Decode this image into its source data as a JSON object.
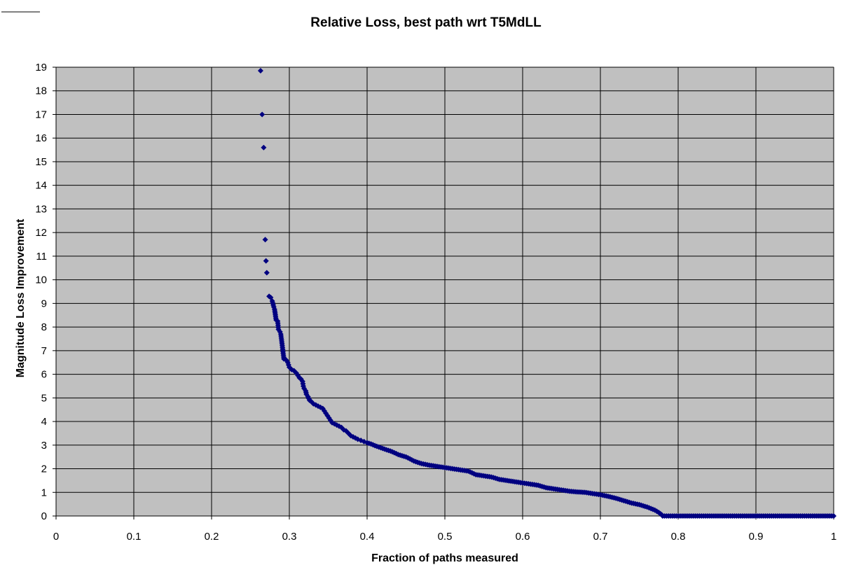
{
  "chart_data": {
    "type": "scatter",
    "title": "Relative Loss, best path wrt T5MdLL",
    "xlabel": "Fraction of paths measured",
    "ylabel": "Magnitude Loss Improvement",
    "xlim": [
      0,
      1
    ],
    "ylim": [
      0,
      19
    ],
    "x_ticks": [
      "0",
      "0.1",
      "0.2",
      "0.3",
      "0.4",
      "0.5",
      "0.6",
      "0.7",
      "0.8",
      "0.9",
      "1"
    ],
    "y_ticks": [
      "0",
      "1",
      "2",
      "3",
      "4",
      "5",
      "6",
      "7",
      "8",
      "9",
      "10",
      "11",
      "12",
      "13",
      "14",
      "15",
      "16",
      "17",
      "18",
      "19"
    ],
    "grid": true,
    "legend": "none",
    "colors": {
      "marker": "#000080",
      "plot_area": "#C0C0C0",
      "grid": "#000000"
    },
    "series": [
      {
        "marker": "diamond",
        "points": [
          [
            0.263,
            18.85
          ],
          [
            0.265,
            17.0
          ],
          [
            0.267,
            15.6
          ],
          [
            0.269,
            11.7
          ],
          [
            0.27,
            10.8
          ],
          [
            0.271,
            10.3
          ],
          [
            0.274,
            9.3
          ],
          [
            0.276,
            9.25
          ],
          [
            0.278,
            9.1
          ],
          [
            0.28,
            8.85
          ],
          [
            0.281,
            8.75
          ],
          [
            0.283,
            8.3
          ],
          [
            0.285,
            8.25
          ],
          [
            0.286,
            7.9
          ],
          [
            0.288,
            7.8
          ],
          [
            0.289,
            7.7
          ],
          [
            0.29,
            7.45
          ],
          [
            0.293,
            6.65
          ],
          [
            0.296,
            6.6
          ],
          [
            0.298,
            6.5
          ],
          [
            0.3,
            6.3
          ],
          [
            0.303,
            6.2
          ],
          [
            0.306,
            6.15
          ],
          [
            0.309,
            6.05
          ],
          [
            0.311,
            5.95
          ],
          [
            0.313,
            5.85
          ],
          [
            0.315,
            5.8
          ],
          [
            0.317,
            5.7
          ],
          [
            0.318,
            5.5
          ],
          [
            0.319,
            5.4
          ],
          [
            0.321,
            5.3
          ],
          [
            0.322,
            5.15
          ],
          [
            0.324,
            5.05
          ],
          [
            0.326,
            4.9
          ],
          [
            0.328,
            4.85
          ],
          [
            0.331,
            4.75
          ],
          [
            0.334,
            4.7
          ],
          [
            0.337,
            4.65
          ],
          [
            0.34,
            4.6
          ],
          [
            0.343,
            4.55
          ],
          [
            0.345,
            4.45
          ],
          [
            0.347,
            4.35
          ],
          [
            0.349,
            4.25
          ],
          [
            0.351,
            4.15
          ],
          [
            0.353,
            4.05
          ],
          [
            0.355,
            3.95
          ],
          [
            0.358,
            3.9
          ],
          [
            0.361,
            3.85
          ],
          [
            0.364,
            3.8
          ],
          [
            0.367,
            3.75
          ],
          [
            0.37,
            3.65
          ],
          [
            0.373,
            3.6
          ],
          [
            0.376,
            3.5
          ],
          [
            0.379,
            3.4
          ],
          [
            0.382,
            3.35
          ],
          [
            0.385,
            3.3
          ],
          [
            0.388,
            3.25
          ],
          [
            0.392,
            3.2
          ],
          [
            0.396,
            3.15
          ],
          [
            0.4,
            3.1
          ],
          [
            0.405,
            3.05
          ],
          [
            0.41,
            2.98
          ],
          [
            0.415,
            2.92
          ],
          [
            0.42,
            2.86
          ],
          [
            0.425,
            2.8
          ],
          [
            0.43,
            2.75
          ],
          [
            0.435,
            2.68
          ],
          [
            0.44,
            2.6
          ],
          [
            0.445,
            2.55
          ],
          [
            0.45,
            2.5
          ],
          [
            0.455,
            2.42
          ],
          [
            0.46,
            2.33
          ],
          [
            0.465,
            2.27
          ],
          [
            0.47,
            2.22
          ],
          [
            0.48,
            2.15
          ],
          [
            0.49,
            2.1
          ],
          [
            0.5,
            2.05
          ],
          [
            0.51,
            2.0
          ],
          [
            0.52,
            1.95
          ],
          [
            0.53,
            1.9
          ],
          [
            0.54,
            1.75
          ],
          [
            0.55,
            1.7
          ],
          [
            0.56,
            1.65
          ],
          [
            0.57,
            1.55
          ],
          [
            0.58,
            1.5
          ],
          [
            0.59,
            1.45
          ],
          [
            0.6,
            1.4
          ],
          [
            0.61,
            1.35
          ],
          [
            0.62,
            1.3
          ],
          [
            0.63,
            1.2
          ],
          [
            0.64,
            1.15
          ],
          [
            0.65,
            1.1
          ],
          [
            0.66,
            1.05
          ],
          [
            0.67,
            1.02
          ],
          [
            0.68,
            1.0
          ],
          [
            0.69,
            0.95
          ],
          [
            0.7,
            0.9
          ],
          [
            0.71,
            0.83
          ],
          [
            0.72,
            0.75
          ],
          [
            0.73,
            0.65
          ],
          [
            0.74,
            0.55
          ],
          [
            0.75,
            0.48
          ],
          [
            0.76,
            0.38
          ],
          [
            0.77,
            0.25
          ],
          [
            0.775,
            0.15
          ],
          [
            0.779,
            0.05
          ],
          [
            0.78,
            0.0
          ],
          [
            0.8,
            0.0
          ],
          [
            0.82,
            0.0
          ],
          [
            0.84,
            0.0
          ],
          [
            0.86,
            0.0
          ],
          [
            0.88,
            0.0
          ],
          [
            0.9,
            0.0
          ],
          [
            0.92,
            0.0
          ],
          [
            0.94,
            0.0
          ],
          [
            0.96,
            0.0
          ],
          [
            0.98,
            0.0
          ],
          [
            1.0,
            0.0
          ]
        ]
      }
    ]
  }
}
